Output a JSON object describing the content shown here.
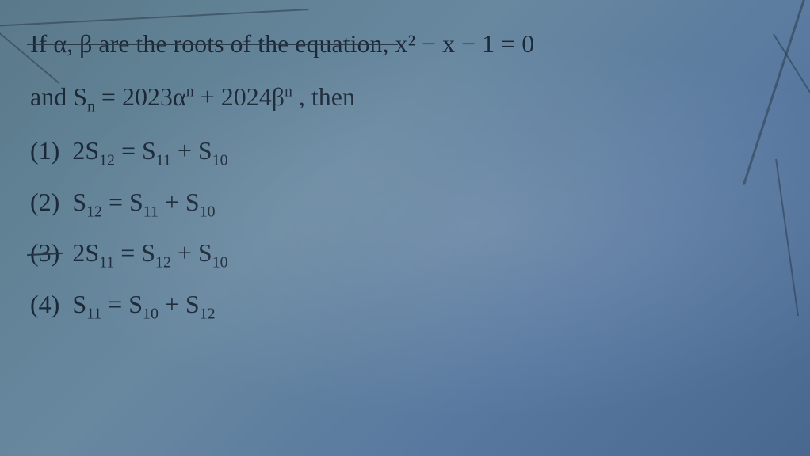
{
  "question": {
    "line1_pre": "If α, β are the roots of the equation,  ",
    "eq_main": "x² − x − 1 = 0",
    "line2_pre": "and ",
    "seq_def_lhs": "S",
    "seq_def_sub": "n",
    "seq_def_eq": " = 2023α",
    "seq_def_exp1": "n",
    "seq_def_mid": " + 2024β",
    "seq_def_exp2": "n",
    "seq_def_post": " , then"
  },
  "options": [
    {
      "num": "(1)",
      "lhs_coef": "2S",
      "lhs_sub": "12",
      "eq": " = S",
      "r1_sub": "11",
      "plus": " + S",
      "r2_sub": "10"
    },
    {
      "num": "(2)",
      "lhs_coef": "S",
      "lhs_sub": "12",
      "eq": " = S",
      "r1_sub": "11",
      "plus": " + S",
      "r2_sub": "10"
    },
    {
      "num": "(3)",
      "lhs_coef": "2S",
      "lhs_sub": "11",
      "eq": " = S",
      "r1_sub": "12",
      "plus": " + S",
      "r2_sub": "10"
    },
    {
      "num": "(4)",
      "lhs_coef": "S",
      "lhs_sub": "11",
      "eq": " = S",
      "r1_sub": "10",
      "plus": " + S",
      "r2_sub": "12"
    }
  ],
  "style": {
    "background_gradient": [
      "#5a7a8a",
      "#6888a0",
      "#5878a0",
      "#486890"
    ],
    "text_color": "#1a2838",
    "font_family": "Times New Roman",
    "base_fontsize_pt": 24,
    "sub_scale": 0.62,
    "crack_color": "#2a3a48",
    "crack_opacity": 0.55
  }
}
